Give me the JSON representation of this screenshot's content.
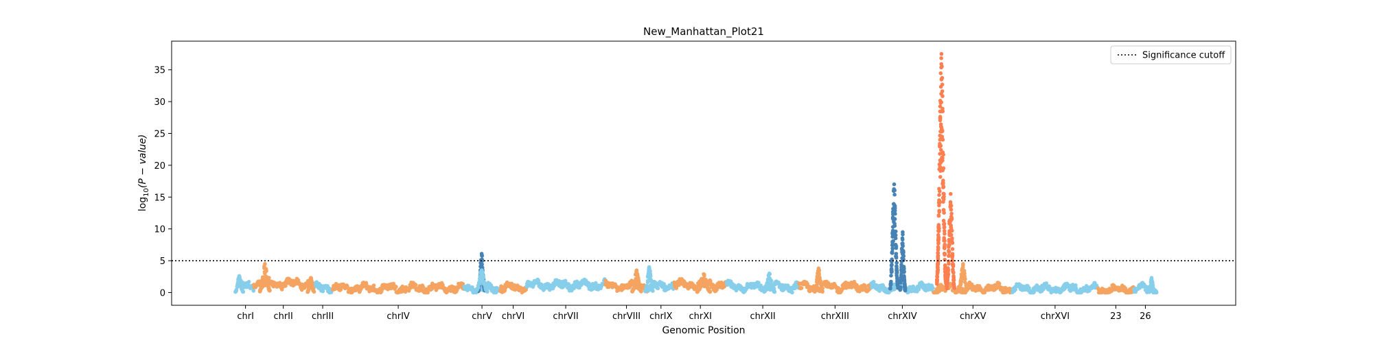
{
  "chart_data": {
    "type": "scatter",
    "title": "New_Manhattan_Plot21",
    "xlabel": "Genomic Position",
    "ylabel_main": "log",
    "ylabel_sub": "10",
    "ylabel_rest": "(P − value)",
    "ylim": [
      -2,
      39.5
    ],
    "yticks": [
      0,
      5,
      10,
      15,
      20,
      25,
      30,
      35
    ],
    "xlim": [
      -10,
      152
    ],
    "grid": false,
    "legend_position": "top-right",
    "threshold": {
      "value": 5,
      "label": "Significance cutoff",
      "style": "dotted",
      "color": "#000000"
    },
    "colors": {
      "skyblue": "#87ceeb",
      "sandy": "#f4a460",
      "steelblue": "#4682b4",
      "coral": "#ff7f50"
    },
    "chromosomes": [
      {
        "label": "chrI",
        "start": 0,
        "end": 2.5,
        "color": "#87ceeb",
        "base": 1.0
      },
      {
        "label": "chrII",
        "start": 2.5,
        "end": 11.5,
        "color": "#f4a460",
        "base": 1.4
      },
      {
        "label": "chrIII",
        "start": 11.5,
        "end": 14.5,
        "color": "#87ceeb",
        "base": 0.8
      },
      {
        "label": "chrIV",
        "start": 14.5,
        "end": 34.5,
        "color": "#f4a460",
        "base": 0.7
      },
      {
        "label": "chrV",
        "start": 34.5,
        "end": 40,
        "color": "#87ceeb",
        "base": 0.7
      },
      {
        "label": "chrVI",
        "start": 40,
        "end": 44,
        "color": "#f4a460",
        "base": 0.8
      },
      {
        "label": "chrVII",
        "start": 44,
        "end": 56,
        "color": "#87ceeb",
        "base": 1.2
      },
      {
        "label": "chrVIII",
        "start": 56,
        "end": 62.5,
        "color": "#f4a460",
        "base": 1.0
      },
      {
        "label": "chrIX",
        "start": 62.5,
        "end": 66.5,
        "color": "#87ceeb",
        "base": 1.0
      },
      {
        "label": "chrXI",
        "start": 66.5,
        "end": 74.5,
        "color": "#f4a460",
        "base": 1.2
      },
      {
        "label": "chrXII",
        "start": 74.5,
        "end": 85.5,
        "color": "#87ceeb",
        "base": 0.9
      },
      {
        "label": "chrXIII",
        "start": 85.5,
        "end": 96.5,
        "color": "#f4a460",
        "base": 0.9
      },
      {
        "label": "chrXIV",
        "start": 96.5,
        "end": 106,
        "color": "#87ceeb",
        "base": 0.7
      },
      {
        "label": "chrXV",
        "start": 106,
        "end": 118,
        "color": "#f4a460",
        "base": 0.6
      },
      {
        "label": "chrXVI",
        "start": 118,
        "end": 131,
        "color": "#87ceeb",
        "base": 0.6
      },
      {
        "label": "23",
        "start": 131,
        "end": 136.5,
        "color": "#f4a460",
        "base": 0.5
      },
      {
        "label": "26",
        "start": 136.5,
        "end": 140,
        "color": "#87ceeb",
        "base": 0.6
      }
    ],
    "peaks": [
      {
        "chromosome": "chrI",
        "x": 0.3,
        "height": 2.6,
        "width": 0.6,
        "color": "#87ceeb"
      },
      {
        "chromosome": "chrII",
        "x": 4.2,
        "height": 4.5,
        "width": 0.8,
        "color": "#f4a460"
      },
      {
        "chromosome": "chrIII",
        "x": 11.2,
        "height": 2.3,
        "width": 0.5,
        "color": "#f4a460"
      },
      {
        "chromosome": "chrV",
        "x": 37.2,
        "height": 6.1,
        "width": 0.5,
        "color": "#4682b4"
      },
      {
        "chromosome": "chrV",
        "x": 37.2,
        "height": 3.5,
        "width": 0.9,
        "color": "#87ceeb"
      },
      {
        "chromosome": "chrVIII",
        "x": 60.8,
        "height": 3.5,
        "width": 0.7,
        "color": "#f4a460"
      },
      {
        "chromosome": "chrIX",
        "x": 62.7,
        "height": 4.0,
        "width": 0.6,
        "color": "#87ceeb"
      },
      {
        "chromosome": "chrXI",
        "x": 71.0,
        "height": 2.9,
        "width": 1.0,
        "color": "#f4a460"
      },
      {
        "chromosome": "chrXII",
        "x": 81.0,
        "height": 3.0,
        "width": 0.8,
        "color": "#87ceeb"
      },
      {
        "chromosome": "chrXIII",
        "x": 88.5,
        "height": 3.8,
        "width": 0.6,
        "color": "#f4a460"
      },
      {
        "chromosome": "chrXIV",
        "x": 100.0,
        "height": 17.0,
        "width": 0.6,
        "color": "#4682b4"
      },
      {
        "chromosome": "chrXIV",
        "x": 101.3,
        "height": 9.5,
        "width": 0.4,
        "color": "#4682b4"
      },
      {
        "chromosome": "chrXV",
        "x": 107.2,
        "height": 37.5,
        "width": 0.7,
        "color": "#ff7f50"
      },
      {
        "chromosome": "chrXV",
        "x": 108.6,
        "height": 15.5,
        "width": 0.6,
        "color": "#ff7f50"
      },
      {
        "chromosome": "chrXV",
        "x": 110.5,
        "height": 4.5,
        "width": 0.7,
        "color": "#f4a460"
      },
      {
        "chromosome": "26",
        "x": 139.2,
        "height": 2.3,
        "width": 0.4,
        "color": "#87ceeb"
      }
    ]
  }
}
